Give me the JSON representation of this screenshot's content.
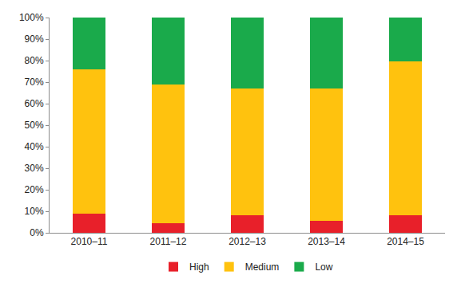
{
  "chart_data": {
    "type": "bar",
    "stacked": true,
    "categories": [
      "2010–11",
      "2011–12",
      "2012–13",
      "2013–14",
      "2014–15"
    ],
    "series": [
      {
        "name": "High",
        "color": "#e8202a",
        "values": [
          9,
          4.5,
          8,
          5.5,
          8
        ]
      },
      {
        "name": "Medium",
        "color": "#ffc20e",
        "values": [
          67,
          64.5,
          59,
          61.5,
          71.5
        ]
      },
      {
        "name": "Low",
        "color": "#1aaa4b",
        "values": [
          24,
          31,
          33,
          33,
          20.5
        ]
      }
    ],
    "ylim": [
      0,
      100
    ],
    "yticks": [
      {
        "value": 0,
        "label": "0%"
      },
      {
        "value": 10,
        "label": "10%"
      },
      {
        "value": 20,
        "label": "20%"
      },
      {
        "value": 30,
        "label": "30%"
      },
      {
        "value": 40,
        "label": "40%"
      },
      {
        "value": 50,
        "label": "50%"
      },
      {
        "value": 60,
        "label": "60%"
      },
      {
        "value": 70,
        "label": "70%"
      },
      {
        "value": 80,
        "label": "80%"
      },
      {
        "value": 90,
        "label": "90%"
      },
      {
        "value": 100,
        "label": "100%"
      }
    ],
    "grid": false,
    "legend": "bottom"
  }
}
